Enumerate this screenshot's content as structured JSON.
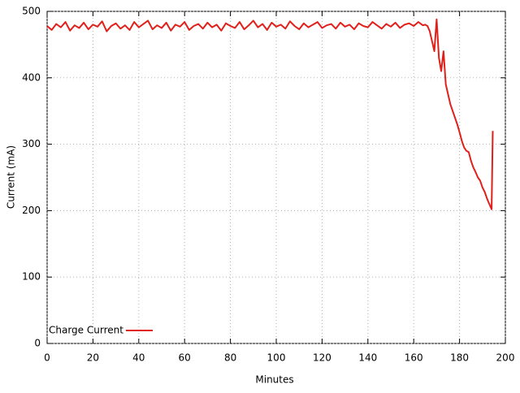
{
  "chart_data": {
    "type": "line",
    "xlabel": "Minutes",
    "ylabel": "Current (mA)",
    "xlim": [
      0,
      200
    ],
    "ylim": [
      0,
      500
    ],
    "xticks": [
      0,
      20,
      40,
      60,
      80,
      100,
      120,
      140,
      160,
      180,
      200
    ],
    "yticks": [
      0,
      100,
      200,
      300,
      400,
      500
    ],
    "grid": true,
    "legend": "bottom left",
    "x": [
      0,
      2,
      4,
      6,
      8,
      10,
      12,
      14,
      16,
      18,
      20,
      22,
      24,
      26,
      28,
      30,
      32,
      34,
      36,
      38,
      40,
      42,
      44,
      46,
      48,
      50,
      52,
      54,
      56,
      58,
      60,
      62,
      64,
      66,
      68,
      70,
      72,
      74,
      76,
      78,
      80,
      82,
      84,
      86,
      88,
      90,
      92,
      94,
      96,
      98,
      100,
      102,
      104,
      106,
      108,
      110,
      112,
      114,
      116,
      118,
      120,
      122,
      124,
      126,
      128,
      130,
      132,
      134,
      136,
      138,
      140,
      142,
      144,
      146,
      148,
      150,
      152,
      154,
      156,
      158,
      160,
      162,
      164,
      165,
      166,
      167,
      168,
      169,
      170,
      171,
      172,
      173,
      174,
      175,
      176,
      177,
      178,
      179,
      180,
      181,
      182,
      183,
      184,
      185,
      186,
      187,
      188,
      189,
      190,
      191,
      192,
      193,
      194,
      194.5
    ],
    "series": [
      {
        "name": "Charge Current",
        "color": "#e0201a",
        "values": [
          478,
          472,
          481,
          476,
          484,
          471,
          479,
          475,
          483,
          473,
          480,
          477,
          485,
          470,
          478,
          482,
          474,
          479,
          472,
          484,
          476,
          481,
          486,
          473,
          479,
          475,
          483,
          471,
          480,
          477,
          484,
          472,
          478,
          481,
          474,
          483,
          476,
          480,
          471,
          482,
          478,
          475,
          484,
          473,
          479,
          486,
          476,
          481,
          472,
          483,
          477,
          480,
          474,
          485,
          478,
          473,
          482,
          476,
          480,
          484,
          475,
          479,
          481,
          474,
          483,
          477,
          480,
          473,
          482,
          478,
          476,
          484,
          479,
          474,
          481,
          477,
          483,
          475,
          480,
          482,
          478,
          484,
          479,
          480,
          478,
          470,
          455,
          440,
          488,
          430,
          410,
          440,
          390,
          375,
          360,
          350,
          340,
          330,
          318,
          305,
          295,
          290,
          288,
          275,
          265,
          258,
          250,
          245,
          235,
          228,
          218,
          210,
          202,
          320
        ]
      }
    ]
  }
}
